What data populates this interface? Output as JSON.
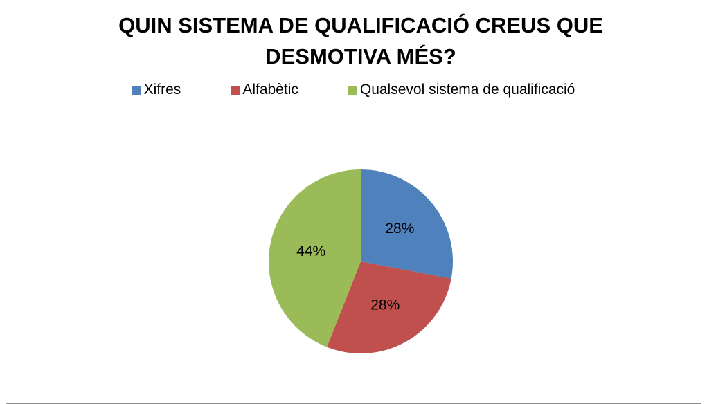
{
  "chart_data": {
    "type": "pie",
    "title": "QUIN SISTEMA DE QUALIFICACIÓ CREUS QUE DESMOTIVA MÉS?",
    "categories": [
      "Xifres",
      "Alfabètic",
      "Qualsevol sistema de qualificació"
    ],
    "values": [
      28,
      28,
      44
    ],
    "value_labels": [
      "28%",
      "28%",
      "44%"
    ],
    "colors": [
      "#4f81bd",
      "#c0504d",
      "#9bbb59"
    ]
  }
}
